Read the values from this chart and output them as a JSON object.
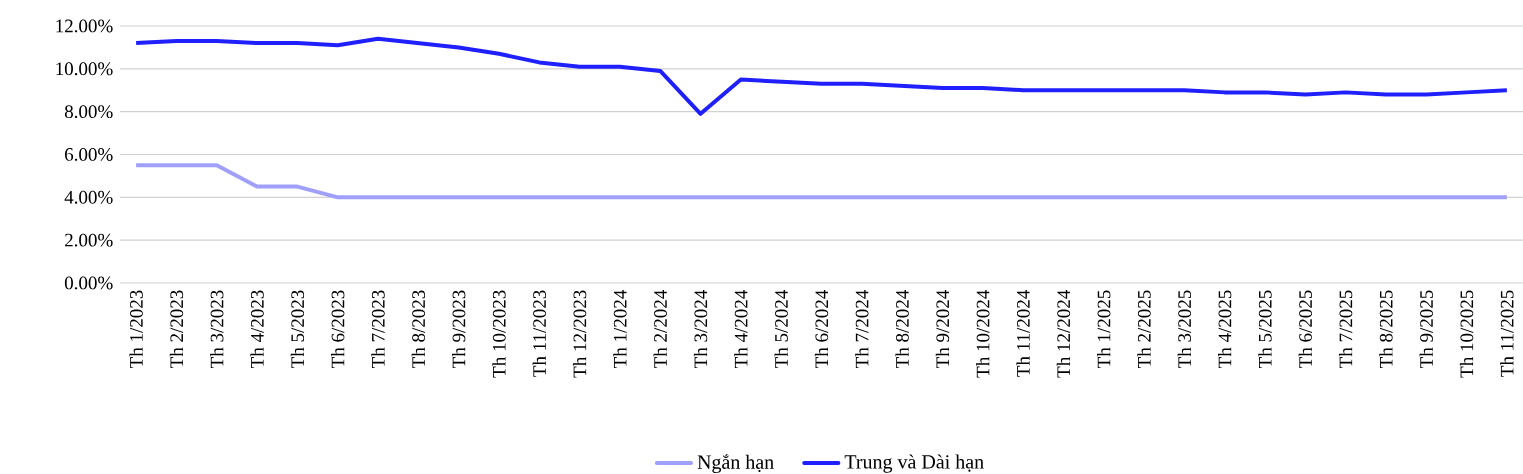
{
  "chart_data": {
    "type": "line",
    "categories": [
      "Th 1/2023",
      "Th 2/2023",
      "Th 3/2023",
      "Th 4/2023",
      "Th 5/2023",
      "Th 6/2023",
      "Th 7/2023",
      "Th 8/2023",
      "Th 9/2023",
      "Th 10/2023",
      "Th 11/2023",
      "Th 12/2023",
      "Th 1/2024",
      "Th 2/2024",
      "Th 3/2024",
      "Th 4/2024",
      "Th 5/2024",
      "Th 6/2024",
      "Th 7/2024",
      "Th 8/2024",
      "Th 9/2024",
      "Th 10/2024",
      "Th 11/2024",
      "Th 12/2024",
      "Th 1/2025",
      "Th 2/2025",
      "Th 3/2025",
      "Th 4/2025",
      "Th 5/2025",
      "Th 6/2025",
      "Th 7/2025",
      "Th 8/2025",
      "Th 9/2025",
      "Th 10/2025",
      "Th 11/2025"
    ],
    "series": [
      {
        "name": "Ngắn hạn",
        "color": "#a0a0fa",
        "values": [
          5.5,
          5.5,
          5.5,
          4.5,
          4.5,
          4.0,
          4.0,
          4.0,
          4.0,
          4.0,
          4.0,
          4.0,
          4.0,
          4.0,
          4.0,
          4.0,
          4.0,
          4.0,
          4.0,
          4.0,
          4.0,
          4.0,
          4.0,
          4.0,
          4.0,
          4.0,
          4.0,
          4.0,
          4.0,
          4.0,
          4.0,
          4.0,
          4.0,
          4.0,
          4.0
        ]
      },
      {
        "name": "Trung và Dài hạn",
        "color": "#2020ff",
        "values": [
          11.2,
          11.3,
          11.3,
          11.2,
          11.2,
          11.1,
          11.4,
          11.2,
          11.0,
          10.7,
          10.3,
          10.1,
          10.1,
          9.9,
          7.9,
          9.5,
          9.4,
          9.3,
          9.3,
          9.2,
          9.1,
          9.1,
          9.0,
          9.0,
          9.0,
          9.0,
          9.0,
          8.9,
          8.9,
          8.8,
          8.9,
          8.8,
          8.8,
          8.9,
          9.0
        ]
      }
    ],
    "ylim": [
      0,
      12
    ],
    "yticks": [
      {
        "value": 0,
        "label": "0.00%"
      },
      {
        "value": 2,
        "label": "2.00%"
      },
      {
        "value": 4,
        "label": "4.00%"
      },
      {
        "value": 6,
        "label": "6.00%"
      },
      {
        "value": 8,
        "label": "8.00%"
      },
      {
        "value": 10,
        "label": "10.00%"
      },
      {
        "value": 12,
        "label": "12.00%"
      }
    ],
    "grid": "y",
    "legend": "bottom",
    "marker": "none",
    "line_style": "solid"
  }
}
